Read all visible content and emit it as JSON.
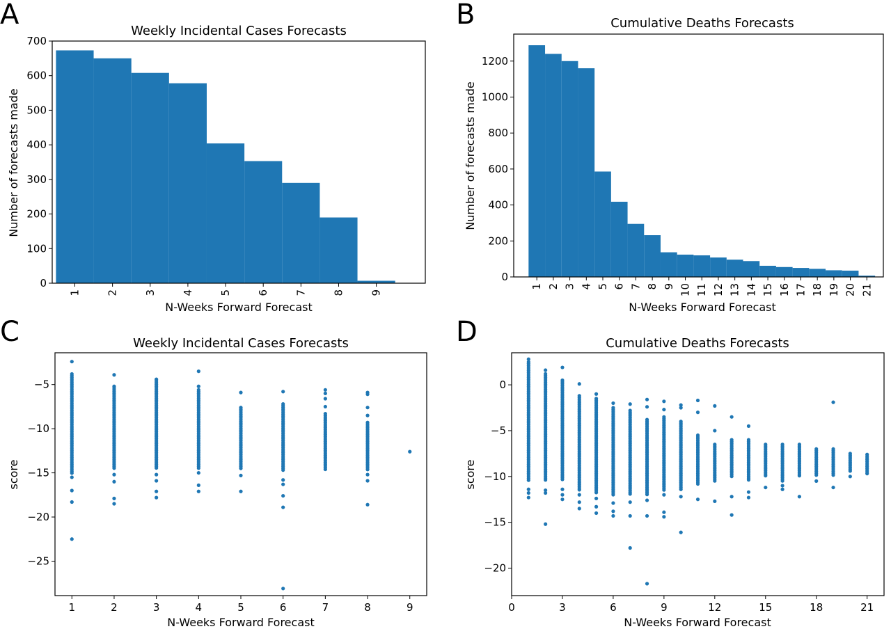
{
  "colors": {
    "bar": "#1f77b4",
    "point": "#1f77b4",
    "axes": "#000000",
    "background": "#ffffff"
  },
  "chart_data": [
    {
      "panel": "A",
      "type": "bar",
      "title": "Weekly Incidental Cases Forecasts",
      "xlabel": "N-Weeks Forward Forecast",
      "ylabel": "Number of forecasts made",
      "categories": [
        "1",
        "2",
        "3",
        "4",
        "5",
        "6",
        "7",
        "8",
        "9"
      ],
      "values": [
        673,
        650,
        608,
        578,
        404,
        353,
        290,
        190,
        7
      ],
      "xlim": [
        0.4,
        10.3
      ],
      "ylim": [
        0,
        700
      ],
      "yticks": [
        0,
        100,
        200,
        300,
        400,
        500,
        600,
        700
      ],
      "xtick_rotation": -90,
      "grid": false
    },
    {
      "panel": "B",
      "type": "bar",
      "title": "Cumulative Deaths Forecasts",
      "xlabel": "N-Weeks Forward Forecast",
      "ylabel": "Number of forecasts made",
      "categories": [
        "1",
        "2",
        "3",
        "4",
        "5",
        "6",
        "7",
        "8",
        "9",
        "10",
        "11",
        "12",
        "13",
        "14",
        "15",
        "16",
        "17",
        "18",
        "19",
        "20",
        "21"
      ],
      "values": [
        1288,
        1240,
        1200,
        1160,
        586,
        418,
        295,
        232,
        137,
        124,
        120,
        108,
        96,
        88,
        62,
        55,
        50,
        45,
        37,
        35,
        7
      ],
      "xlim": [
        -0.4,
        22
      ],
      "ylim": [
        0,
        1350
      ],
      "yticks": [
        0,
        200,
        400,
        600,
        800,
        1000,
        1200
      ],
      "xtick_rotation": -90,
      "grid": false
    },
    {
      "panel": "C",
      "type": "scatter",
      "title": "Weekly Incidental Cases Forecasts",
      "xlabel": "N-Weeks Forward Forecast",
      "ylabel": "score",
      "xlim": [
        0.6,
        9.4
      ],
      "ylim": [
        -28.9,
        -1.4
      ],
      "xticks": [
        1,
        2,
        3,
        4,
        5,
        6,
        7,
        8,
        9
      ],
      "yticks": [
        -5,
        -10,
        -15,
        -20,
        -25
      ],
      "grid": false,
      "columns": [
        {
          "x": 1,
          "dense": [
            -3.8,
            -15.1
          ],
          "points": [
            -2.4,
            -15.5,
            -17.0,
            -18.3,
            -22.5
          ]
        },
        {
          "x": 2,
          "dense": [
            -5.2,
            -14.6
          ],
          "points": [
            -3.9,
            -15.2,
            -16.0,
            -17.9,
            -18.5
          ]
        },
        {
          "x": 3,
          "dense": [
            -4.4,
            -14.5
          ],
          "points": [
            -15.2,
            -15.9,
            -17.1,
            -17.8
          ]
        },
        {
          "x": 4,
          "dense": [
            -5.6,
            -14.5
          ],
          "points": [
            -3.5,
            -5.2,
            -15.0,
            -16.4,
            -17.1
          ]
        },
        {
          "x": 5,
          "dense": [
            -7.6,
            -14.5
          ],
          "points": [
            -5.9,
            -15.3,
            -17.1
          ]
        },
        {
          "x": 6,
          "dense": [
            -7.2,
            -14.7
          ],
          "points": [
            -5.8,
            -15.8,
            -16.3,
            -17.6,
            -18.9,
            -28.1
          ]
        },
        {
          "x": 7,
          "dense": [
            -8.3,
            -14.8
          ],
          "points": [
            -5.6,
            -6.0,
            -6.6,
            -7.5
          ]
        },
        {
          "x": 8,
          "dense": [
            -9.3,
            -14.8
          ],
          "points": [
            -5.9,
            -6.1,
            -7.6,
            -8.5,
            -15.2,
            -15.9,
            -18.6
          ]
        },
        {
          "x": 9,
          "dense": null,
          "points": [
            -12.6
          ]
        }
      ]
    },
    {
      "panel": "D",
      "type": "scatter",
      "title": "Cumulative Deaths Forecasts",
      "xlabel": "N-Weeks Forward Forecast",
      "ylabel": "score",
      "xlim": [
        0,
        22
      ],
      "ylim": [
        -23,
        3.5
      ],
      "xticks": [
        0,
        3,
        6,
        9,
        12,
        15,
        18,
        21
      ],
      "yticks": [
        0,
        -5,
        -10,
        -15,
        -20
      ],
      "grid": false,
      "columns": [
        {
          "x": 1,
          "dense": [
            2.5,
            -10.5
          ],
          "points": [
            2.8,
            -11.4,
            -11.8,
            -12.3
          ]
        },
        {
          "x": 2,
          "dense": [
            1.2,
            -10.5
          ],
          "points": [
            1.6,
            -11.5,
            -11.8,
            -15.2
          ]
        },
        {
          "x": 3,
          "dense": [
            0.5,
            -10.5
          ],
          "points": [
            1.9,
            -11.4,
            -12.0,
            -12.5
          ]
        },
        {
          "x": 4,
          "dense": [
            -1.2,
            -11.5
          ],
          "points": [
            0.1,
            -12.0,
            -12.8,
            -13.5
          ]
        },
        {
          "x": 5,
          "dense": [
            -1.5,
            -11.8
          ],
          "points": [
            -1.0,
            -12.4,
            -13.3,
            -14.0
          ]
        },
        {
          "x": 6,
          "dense": [
            -2.5,
            -12.0
          ],
          "points": [
            -2.0,
            -12.9,
            -13.8,
            -14.3
          ]
        },
        {
          "x": 7,
          "dense": [
            -2.8,
            -12.0
          ],
          "points": [
            -2.1,
            -12.8,
            -14.3,
            -17.8
          ]
        },
        {
          "x": 8,
          "dense": [
            -3.8,
            -12.0
          ],
          "points": [
            -2.4,
            -1.6,
            -12.6,
            -14.3,
            -21.7
          ]
        },
        {
          "x": 9,
          "dense": [
            -3.5,
            -11.5
          ],
          "points": [
            -1.8,
            -2.7,
            -12.0,
            -13.9,
            -14.4
          ]
        },
        {
          "x": 10,
          "dense": [
            -4.0,
            -11.5
          ],
          "points": [
            -2.2,
            -2.5,
            -12.2,
            -16.1
          ]
        },
        {
          "x": 11,
          "dense": [
            -5.5,
            -11.0
          ],
          "points": [
            -1.7,
            -3.0,
            -12.5
          ]
        },
        {
          "x": 12,
          "dense": [
            -6.5,
            -10.5
          ],
          "points": [
            -2.3,
            -5.0,
            -12.7
          ]
        },
        {
          "x": 13,
          "dense": [
            -6.0,
            -10.0
          ],
          "points": [
            -3.5,
            -12.2,
            -14.2
          ]
        },
        {
          "x": 14,
          "dense": [
            -6.0,
            -10.5
          ],
          "points": [
            -4.5,
            -11.7,
            -12.3
          ]
        },
        {
          "x": 15,
          "dense": [
            -6.5,
            -10.0
          ],
          "points": [
            -11.2
          ]
        },
        {
          "x": 16,
          "dense": [
            -6.5,
            -10.5
          ],
          "points": [
            -11.0,
            -11.4
          ]
        },
        {
          "x": 17,
          "dense": [
            -6.5,
            -10.0
          ],
          "points": [
            -12.2
          ]
        },
        {
          "x": 18,
          "dense": [
            -7.0,
            -10.0
          ],
          "points": [
            -10.5
          ]
        },
        {
          "x": 19,
          "dense": [
            -7.0,
            -10.0
          ],
          "points": [
            -1.9,
            -11.2
          ]
        },
        {
          "x": 20,
          "dense": [
            -7.5,
            -9.5
          ],
          "points": [
            -10.0
          ]
        },
        {
          "x": 21,
          "dense": [
            -7.6,
            -9.8
          ],
          "points": []
        }
      ]
    }
  ]
}
